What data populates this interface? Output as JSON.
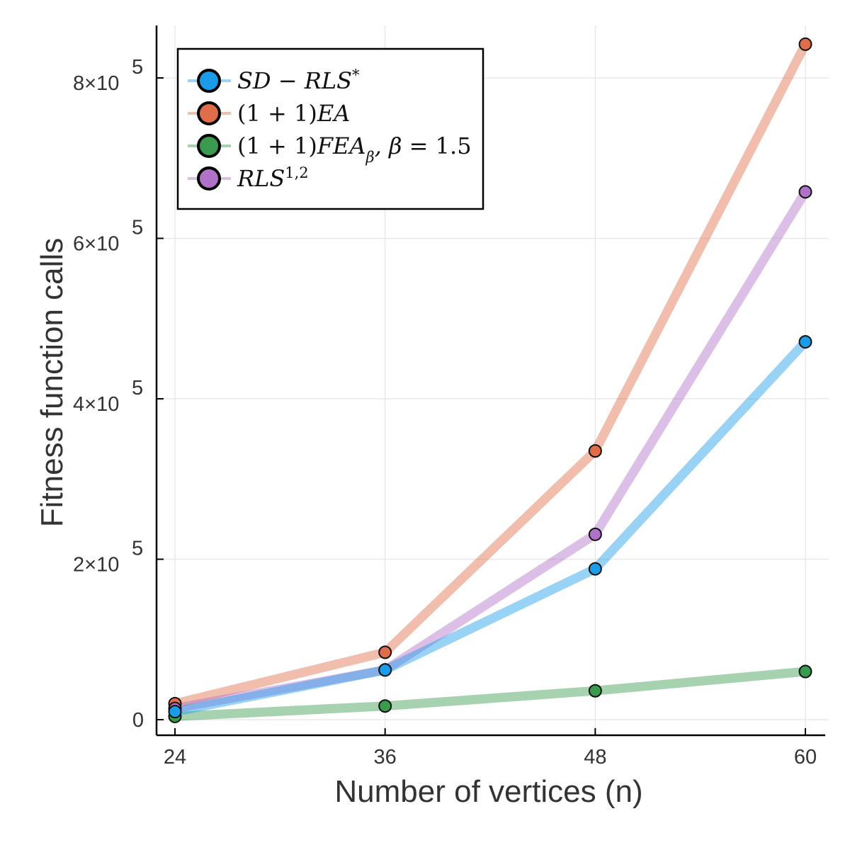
{
  "chart_data": {
    "type": "line",
    "title": "",
    "xlabel": "Number of vertices (n)",
    "ylabel": "Fitness function calls",
    "x": [
      24,
      36,
      48,
      60
    ],
    "xlim": [
      24,
      60
    ],
    "ylim": [
      0,
      850000
    ],
    "grid": true,
    "legend_position": "top-left",
    "xticks": [
      {
        "value": 24,
        "label": "24"
      },
      {
        "value": 36,
        "label": "36"
      },
      {
        "value": 48,
        "label": "48"
      },
      {
        "value": 60,
        "label": "60"
      }
    ],
    "yticks": [
      {
        "value": 0,
        "label": "0",
        "exp": ""
      },
      {
        "value": 200000,
        "label": "2×10",
        "exp": "5"
      },
      {
        "value": 400000,
        "label": "4×10",
        "exp": "5"
      },
      {
        "value": 600000,
        "label": "6×10",
        "exp": "5"
      },
      {
        "value": 800000,
        "label": "8×10",
        "exp": "5"
      }
    ],
    "series": [
      {
        "name": "SD − RLS*",
        "color": "#1a9ce8",
        "values": [
          10000,
          62000,
          188000,
          471000
        ],
        "legend_parts": [
          {
            "t": "SD − RLS"
          },
          {
            "t": "*",
            "sup": true
          }
        ]
      },
      {
        "name": "(1 + 1)EA",
        "color": "#e06d49",
        "values": [
          20000,
          84000,
          335000,
          842000
        ],
        "legend_parts": [
          {
            "t": "(1 + 1)",
            "up": true
          },
          {
            "t": "EA"
          }
        ]
      },
      {
        "name": "(1 + 1)FEAβ, β = 1.5",
        "color": "#3a9b4f",
        "values": [
          4000,
          17000,
          36000,
          60000
        ],
        "legend_parts": [
          {
            "t": "(1 + 1)",
            "up": true
          },
          {
            "t": "FEA"
          },
          {
            "t": "β",
            "sub": true
          },
          {
            "t": ", β = ",
            "up": false
          },
          {
            "t": "1.5",
            "up": true
          }
        ]
      },
      {
        "name": "RLS1,2",
        "color": "#b071c9",
        "values": [
          14000,
          62000,
          231000,
          658000
        ],
        "legend_parts": [
          {
            "t": "RLS"
          },
          {
            "t": "1,2",
            "sup": true,
            "up": true
          }
        ]
      }
    ]
  }
}
